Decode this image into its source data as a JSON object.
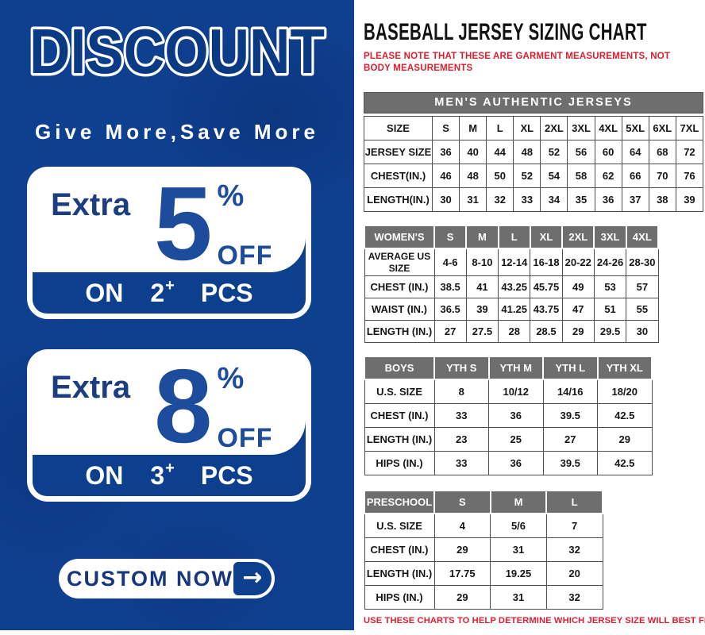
{
  "promo": {
    "title": "DISCOUNT",
    "subtitle": "Give More,Save More",
    "offers": [
      {
        "extra": "Extra",
        "amount": "5",
        "percent": "%",
        "off": "OFF",
        "on": "ON",
        "qty": "2",
        "plus": "+",
        "pcs": "PCS"
      },
      {
        "extra": "Extra",
        "amount": "8",
        "percent": "%",
        "off": "OFF",
        "on": "ON",
        "qty": "3",
        "plus": "+",
        "pcs": "PCS"
      }
    ],
    "cta_label": "CUSTOM NOW",
    "cta_arrow": "→"
  },
  "sizing": {
    "title": "BASEBALL JERSEY SIZING CHART",
    "note": "PLEASE NOTE THAT THESE ARE GARMENT MEASUREMENTS, NOT BODY MEASUREMENTS",
    "footer": "USE THESE CHARTS TO HELP DETERMINE WHICH JERSEY SIZE WILL BEST FIT YOU."
  },
  "chart_data": [
    {
      "type": "table",
      "title": "MEN'S AUTHENTIC JERSEYS",
      "columns": [
        "SIZE",
        "S",
        "M",
        "L",
        "XL",
        "2XL",
        "3XL",
        "4XL",
        "5XL",
        "6XL",
        "7XL"
      ],
      "rows": [
        [
          "JERSEY SIZE",
          "36",
          "40",
          "44",
          "48",
          "52",
          "56",
          "60",
          "64",
          "68",
          "72"
        ],
        [
          "CHEST(IN.)",
          "46",
          "48",
          "50",
          "52",
          "54",
          "58",
          "62",
          "66",
          "70",
          "76"
        ],
        [
          "LENGTH(IN.)",
          "30",
          "31",
          "32",
          "33",
          "34",
          "35",
          "36",
          "37",
          "38",
          "39"
        ]
      ]
    },
    {
      "type": "table",
      "title": "WOMEN'S",
      "columns": [
        "WOMEN'S",
        "S",
        "M",
        "L",
        "XL",
        "2XL",
        "3XL",
        "4XL"
      ],
      "rows": [
        [
          "AVERAGE US SIZE",
          "4-6",
          "8-10",
          "12-14",
          "16-18",
          "20-22",
          "24-26",
          "28-30"
        ],
        [
          "CHEST (IN.)",
          "38.5",
          "41",
          "43.25",
          "45.75",
          "49",
          "53",
          "57"
        ],
        [
          "WAIST (IN.)",
          "36.5",
          "39",
          "41.25",
          "43.75",
          "47",
          "51",
          "55"
        ],
        [
          "LENGTH (IN.)",
          "27",
          "27.5",
          "28",
          "28.5",
          "29",
          "29.5",
          "30"
        ]
      ]
    },
    {
      "type": "table",
      "title": "BOYS",
      "columns": [
        "BOYS",
        "YTH S",
        "YTH M",
        "YTH L",
        "YTH XL"
      ],
      "rows": [
        [
          "U.S. SIZE",
          "8",
          "10/12",
          "14/16",
          "18/20"
        ],
        [
          "CHEST (IN.)",
          "33",
          "36",
          "39.5",
          "42.5"
        ],
        [
          "LENGTH (IN.)",
          "23",
          "25",
          "27",
          "29"
        ],
        [
          "HIPS (IN.)",
          "33",
          "36",
          "39.5",
          "42.5"
        ]
      ]
    },
    {
      "type": "table",
      "title": "PRESCHOOL",
      "columns": [
        "PRESCHOOL",
        "S",
        "M",
        "L"
      ],
      "rows": [
        [
          "U.S. SIZE",
          "4",
          "5/6",
          "7"
        ],
        [
          "CHEST (IN.)",
          "29",
          "31",
          "32"
        ],
        [
          "LENGTH (IN.)",
          "17.75",
          "19.25",
          "20"
        ],
        [
          "HIPS (IN.)",
          "29",
          "31",
          "32"
        ]
      ]
    }
  ],
  "colors": {
    "panel_blue": "#0e4090",
    "bar_blue": "#0d3f8f",
    "number_blue": "#1e4c9c",
    "navy_text": "#1c3e80",
    "header_gray": "#6e6e6e",
    "note_red": "#d91f2f"
  }
}
